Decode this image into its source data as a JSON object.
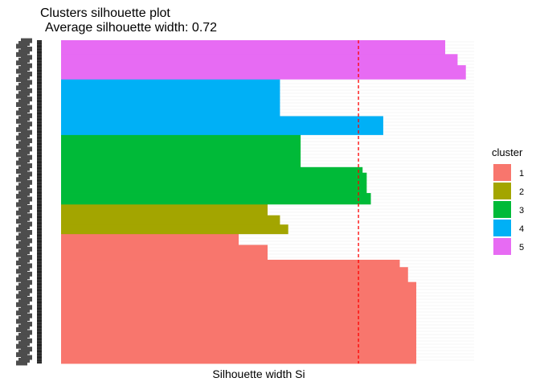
{
  "chart_data": {
    "type": "bar",
    "orientation": "horizontal",
    "title": "Clusters silhouette plot",
    "subtitle": "Average silhouette width: 0.72",
    "xlabel": "Silhouette width Si",
    "ylabel": "",
    "xlim": [
      0,
      1
    ],
    "grid": false,
    "average_line": {
      "value": 0.72,
      "color": "#ff0000",
      "style": "dashed"
    },
    "legend": {
      "title": "cluster",
      "position": "right"
    },
    "series": [
      {
        "name": "1",
        "color": "#F8766D",
        "blocks": [
          [
            88,
            0.86
          ],
          [
            16,
            0.84
          ],
          [
            8,
            0.82
          ],
          [
            16,
            0.5
          ],
          [
            12,
            0.43
          ]
        ]
      },
      {
        "name": "2",
        "color": "#A3A500",
        "blocks": [
          [
            10,
            0.55
          ],
          [
            10,
            0.53
          ],
          [
            12,
            0.5
          ]
        ]
      },
      {
        "name": "3",
        "color": "#00BA38",
        "blocks": [
          [
            12,
            0.75
          ],
          [
            22,
            0.74
          ],
          [
            6,
            0.73
          ],
          [
            35,
            0.58
          ]
        ]
      },
      {
        "name": "4",
        "color": "#00B0F6",
        "blocks": [
          [
            20,
            0.78
          ],
          [
            40,
            0.53
          ]
        ]
      },
      {
        "name": "5",
        "color": "#E76BF3",
        "blocks": [
          [
            15,
            0.98
          ],
          [
            12,
            0.96
          ],
          [
            15,
            0.93
          ]
        ]
      }
    ]
  }
}
